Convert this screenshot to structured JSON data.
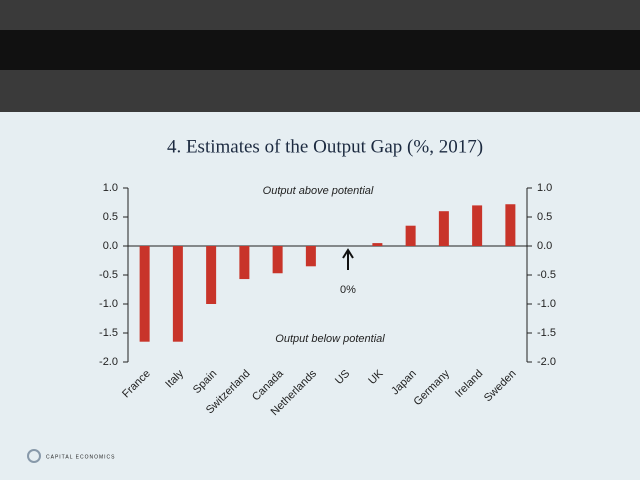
{
  "chart_data": {
    "type": "bar",
    "title": "4. Estimates of the Output Gap (%, 2017)",
    "categories": [
      "France",
      "Italy",
      "Spain",
      "Switzerland",
      "Canada",
      "Netherlands",
      "US",
      "UK",
      "Japan",
      "Germany",
      "Ireland",
      "Sweden"
    ],
    "values": [
      -1.65,
      -1.65,
      -1.0,
      -0.57,
      -0.47,
      -0.35,
      0,
      0.05,
      0.35,
      0.6,
      0.7,
      0.72
    ],
    "color": "#c8342a",
    "ylim": [
      -2,
      1
    ],
    "yticks": [
      {
        "value": 1,
        "label": "1.0"
      },
      {
        "value": 0.5,
        "label": "0.5"
      },
      {
        "value": 0,
        "label": "0.0"
      },
      {
        "value": -0.5,
        "label": "-0.5"
      },
      {
        "value": -1,
        "label": "-1.0"
      },
      {
        "value": -1.5,
        "label": "-1.5"
      },
      {
        "value": -2,
        "label": "-2.0"
      }
    ],
    "y2lim": [
      -2,
      1
    ],
    "y2ticks": [
      {
        "value": 1,
        "label": "1.0"
      },
      {
        "value": 0.5,
        "label": "0.5"
      },
      {
        "value": 0,
        "label": "0.0"
      },
      {
        "value": -0.5,
        "label": "-0.5"
      },
      {
        "value": -1,
        "label": "-1.0"
      },
      {
        "value": -1.5,
        "label": "-1.5"
      },
      {
        "value": -2,
        "label": "-2.0"
      }
    ],
    "annotations": [
      "Output above potential",
      "Output below potential",
      "0%"
    ],
    "logo": "CAPITAL ECONOMICS"
  }
}
